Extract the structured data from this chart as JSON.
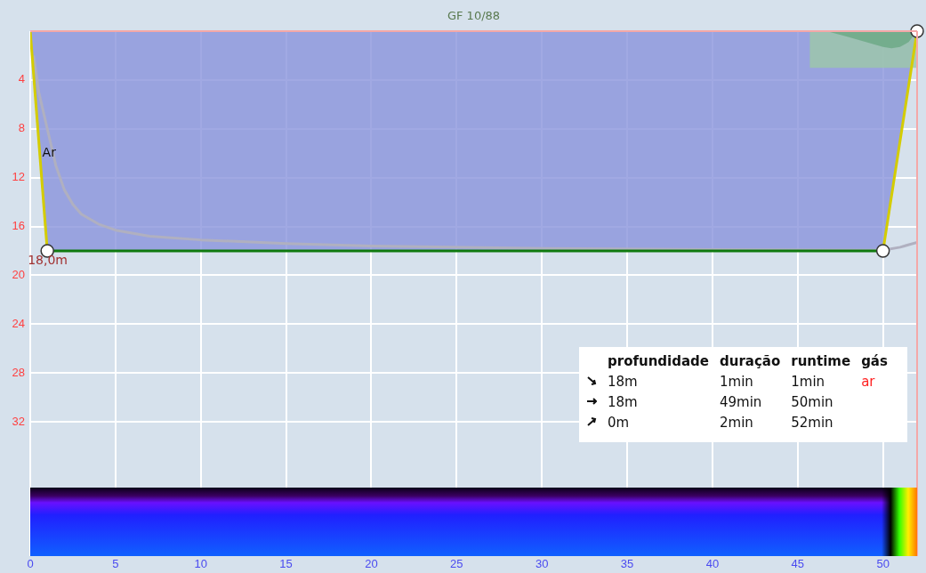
{
  "chart_data": {
    "type": "line",
    "title": "GF 10/88",
    "xlim": [
      0,
      52
    ],
    "ylim": [
      43,
      0
    ],
    "xticks": [
      0,
      5,
      10,
      15,
      20,
      25,
      30,
      35,
      40,
      45,
      50
    ],
    "yticks": [
      4,
      8,
      12,
      16,
      20,
      24,
      28,
      32
    ],
    "grid": true,
    "legend": false,
    "series": [
      {
        "type": "area",
        "color": "#8a94dc",
        "x": [
          0,
          1,
          50,
          52
        ],
        "values": [
          0,
          18,
          18,
          0
        ]
      },
      {
        "type": "area",
        "color": "#9cc8a8",
        "x": [
          45.7,
          52
        ],
        "values": [
          3,
          3
        ]
      },
      {
        "type": "area",
        "color": "#6aa883",
        "x": [
          46.7,
          48,
          49,
          50,
          50.5,
          51,
          51.5,
          52
        ],
        "values": [
          0,
          0.5,
          0.9,
          1.3,
          1.4,
          1.3,
          0.9,
          0
        ]
      },
      {
        "color": "#b0b0c0",
        "marker": "none",
        "x": [
          0.2,
          0.5,
          1,
          1.5,
          2,
          2.5,
          3,
          4,
          5,
          7,
          10,
          15,
          20,
          30,
          40,
          50,
          51,
          52
        ],
        "values": [
          2,
          5,
          8,
          11,
          13,
          14.2,
          15,
          15.8,
          16.3,
          16.8,
          17.1,
          17.4,
          17.6,
          17.8,
          17.9,
          17.95,
          17.7,
          17.3
        ]
      },
      {
        "color": "#d4cc00",
        "marker": "none",
        "x": [
          0,
          1
        ],
        "values": [
          0,
          18
        ]
      },
      {
        "color": "#d4cc00",
        "marker": "none",
        "x": [
          50,
          52
        ],
        "values": [
          18,
          0
        ]
      },
      {
        "color": "#0f7a0f",
        "marker": "none",
        "x": [
          1,
          50
        ],
        "values": [
          18,
          18
        ]
      },
      {
        "type": "scatter",
        "color": "#ffffff",
        "marker": "circle",
        "x": [
          1,
          50,
          52
        ],
        "values": [
          18,
          18,
          0
        ]
      }
    ],
    "ref_lines": [
      {
        "axis": "y",
        "value": 0,
        "color": "#f4a8a8"
      },
      {
        "axis": "x",
        "value": 52,
        "color": "#f4a8a8"
      }
    ],
    "annotations": [
      {
        "text": "Ar",
        "x": 0.5,
        "y": 10
      },
      {
        "text": "18,0m",
        "x": 1,
        "y": 18
      },
      "\tprofundidade\tduração\truntime\tgás",
      "\t18m\t1min\t1min\tar",
      "\t18m\t49min\t50min\t",
      "\t0m\t2min\t52min\t"
    ]
  }
}
